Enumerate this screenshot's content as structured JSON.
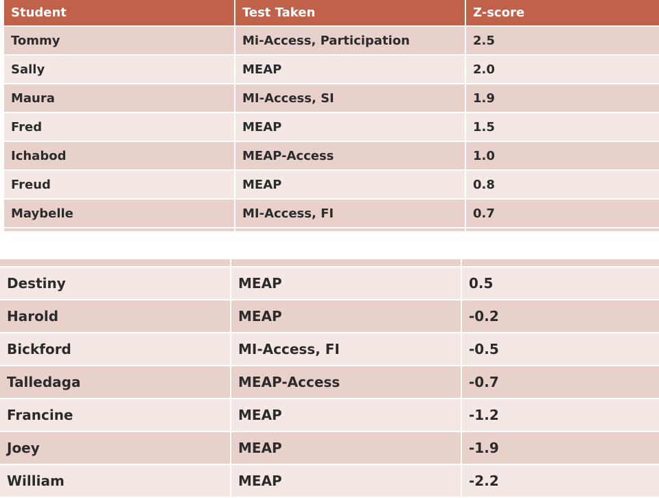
{
  "headers": {
    "student": "Student",
    "test": "Test Taken",
    "zscore": "Z-score"
  },
  "rows_top": [
    {
      "student": "Tommy",
      "test": "Mi-Access, Participation",
      "zscore": "2.5"
    },
    {
      "student": "Sally",
      "test": "MEAP",
      "zscore": "2.0"
    },
    {
      "student": "Maura",
      "test": "MI-Access, SI",
      "zscore": "1.9"
    },
    {
      "student": "Fred",
      "test": "MEAP",
      "zscore": "1.5"
    },
    {
      "student": "Ichabod",
      "test": "MEAP-Access",
      "zscore": "1.0"
    },
    {
      "student": "Freud",
      "test": "MEAP",
      "zscore": "0.8"
    },
    {
      "student": "Maybelle",
      "test": "MI-Access, FI",
      "zscore": "0.7"
    }
  ],
  "rows_bottom": [
    {
      "student": "Destiny",
      "test": "MEAP",
      "zscore": "0.5"
    },
    {
      "student": "Harold",
      "test": "MEAP",
      "zscore": "-0.2"
    },
    {
      "student": "Bickford",
      "test": "MI-Access, FI",
      "zscore": "-0.5"
    },
    {
      "student": "Talledaga",
      "test": "MEAP-Access",
      "zscore": "-0.7"
    },
    {
      "student": "Francine",
      "test": "MEAP",
      "zscore": "-1.2"
    },
    {
      "student": "Joey",
      "test": "MEAP",
      "zscore": "-1.9"
    },
    {
      "student": "William",
      "test": "MEAP",
      "zscore": "-2.2"
    }
  ],
  "colors": {
    "header_bg": "#c0614a",
    "row_dark": "#e8d0cb",
    "row_light": "#f4e8e5"
  }
}
